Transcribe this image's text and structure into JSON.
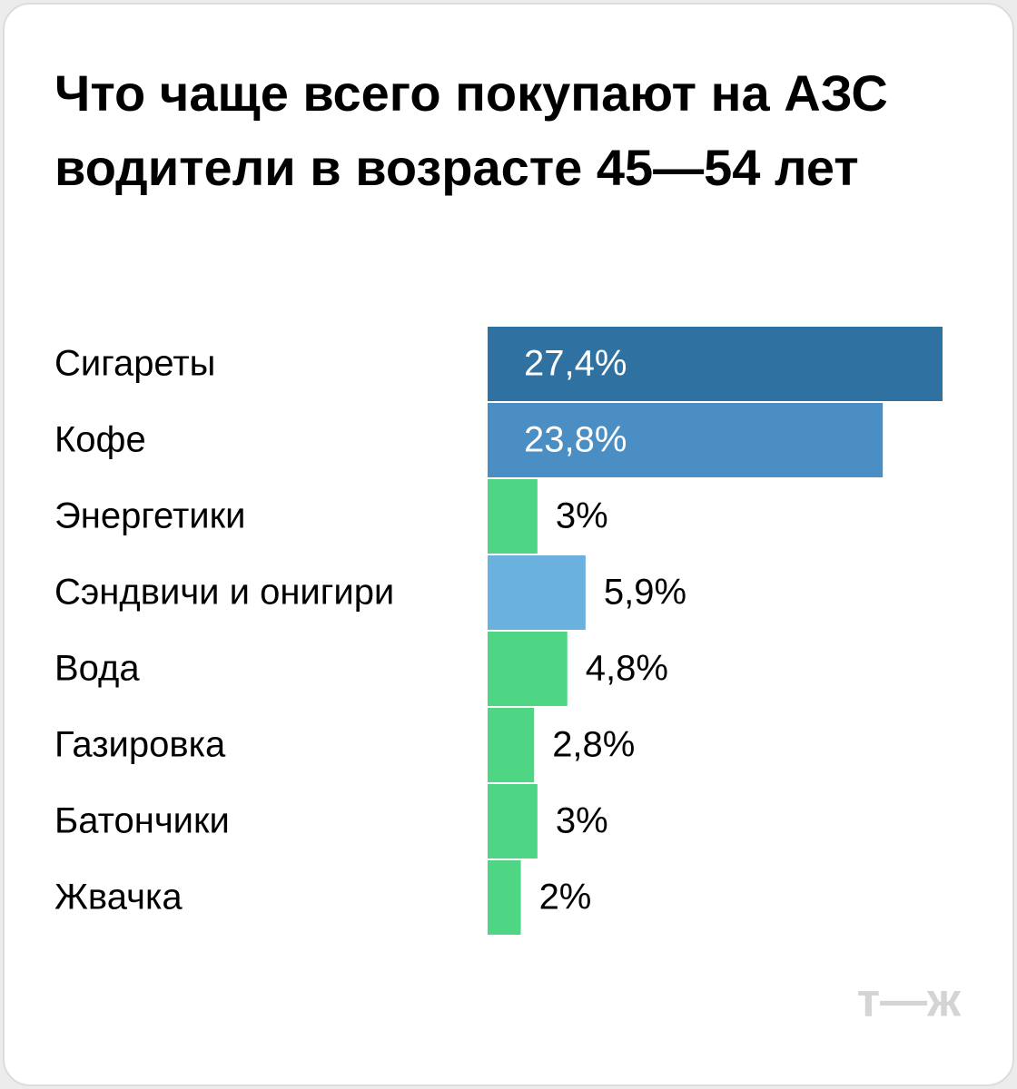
{
  "chart_data": {
    "type": "bar",
    "orientation": "horizontal",
    "title": "Что чаще всего покупают на АЗС водители в возрасте 45—54 лет",
    "categories": [
      "Сигареты",
      "Кофе",
      "Энергетики",
      "Сэндвичи и онигири",
      "Вода",
      "Газировка",
      "Батончики",
      "Жвачка"
    ],
    "values": [
      27.4,
      23.8,
      3,
      5.9,
      4.8,
      2.8,
      3,
      2
    ],
    "value_labels": [
      "27,4%",
      "23,8%",
      "3%",
      "5,9%",
      "4,8%",
      "2,8%",
      "3%",
      "2%"
    ],
    "colors": [
      "#2f72a1",
      "#4a8ec4",
      "#4fd685",
      "#6bb1e0",
      "#4fd685",
      "#4fd685",
      "#4fd685",
      "#4fd685"
    ]
  },
  "logo": "т—ж"
}
